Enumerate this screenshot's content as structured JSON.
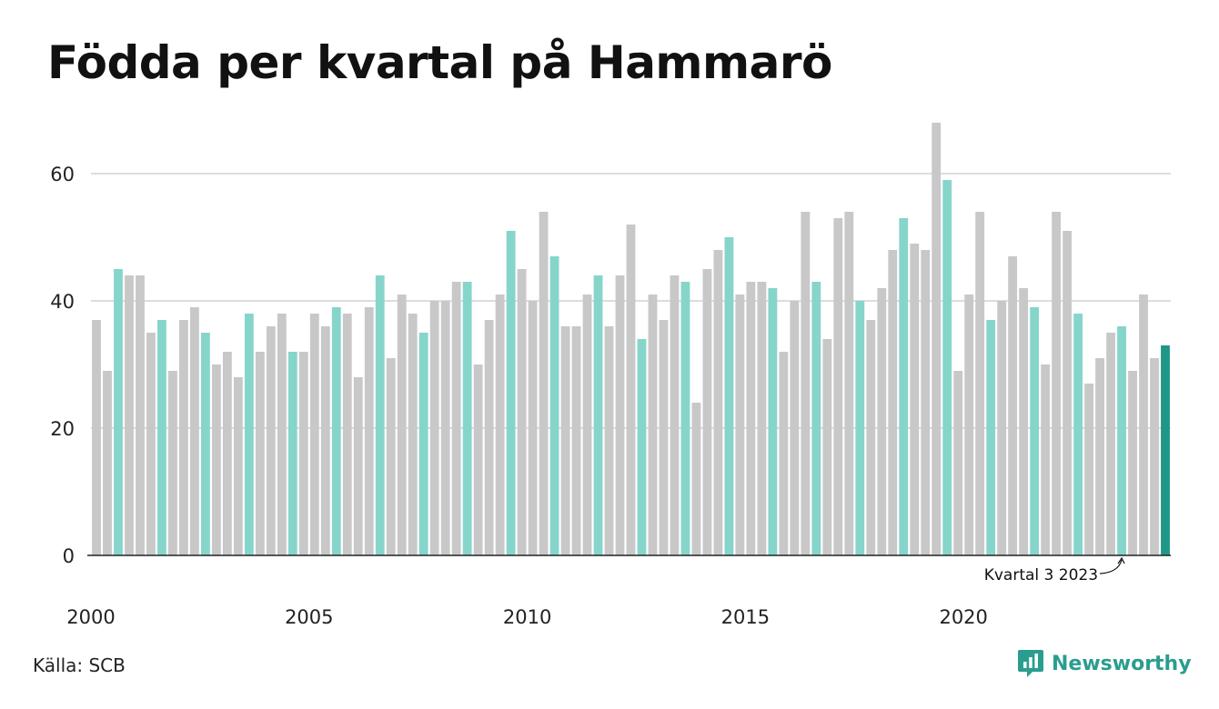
{
  "title": "Födda per kvartal på Hammarö",
  "source": "Källa: SCB",
  "brand": {
    "name": "Newsworthy",
    "icon": "newsworthy-logo-icon"
  },
  "colors": {
    "base": "#c8c8c8",
    "q3": "#86d5cb",
    "highlight": "#1f9687",
    "grid": "#dddddd",
    "axis": "#222222",
    "brand": "#2a9d8f"
  },
  "chart_data": {
    "type": "bar",
    "title": "Födda per kvartal på Hammarö",
    "xlabel": "",
    "ylabel": "",
    "ylim": [
      0,
      68
    ],
    "yticks": [
      0,
      20,
      40,
      60
    ],
    "xtick_labels": [
      "2000",
      "2005",
      "2010",
      "2015",
      "2020"
    ],
    "grid": true,
    "start": "2000 Q1",
    "end": "2024 Q3",
    "annotation": {
      "text": "Kvartal 3 2023",
      "target": "2023 Q3"
    },
    "values": [
      37,
      29,
      45,
      44,
      44,
      35,
      37,
      29,
      37,
      39,
      35,
      30,
      32,
      28,
      38,
      32,
      36,
      38,
      32,
      32,
      38,
      36,
      39,
      38,
      28,
      39,
      44,
      31,
      41,
      38,
      35,
      40,
      40,
      43,
      43,
      30,
      37,
      41,
      51,
      45,
      40,
      54,
      47,
      36,
      36,
      41,
      44,
      36,
      44,
      52,
      34,
      41,
      37,
      44,
      43,
      24,
      45,
      48,
      50,
      41,
      43,
      43,
      42,
      32,
      40,
      54,
      43,
      34,
      53,
      54,
      40,
      37,
      42,
      48,
      53,
      49,
      48,
      68,
      59,
      29,
      41,
      54,
      37,
      40,
      47,
      42,
      39,
      30,
      54,
      51,
      38,
      27,
      31,
      35,
      36,
      29,
      41,
      31,
      33
    ]
  }
}
